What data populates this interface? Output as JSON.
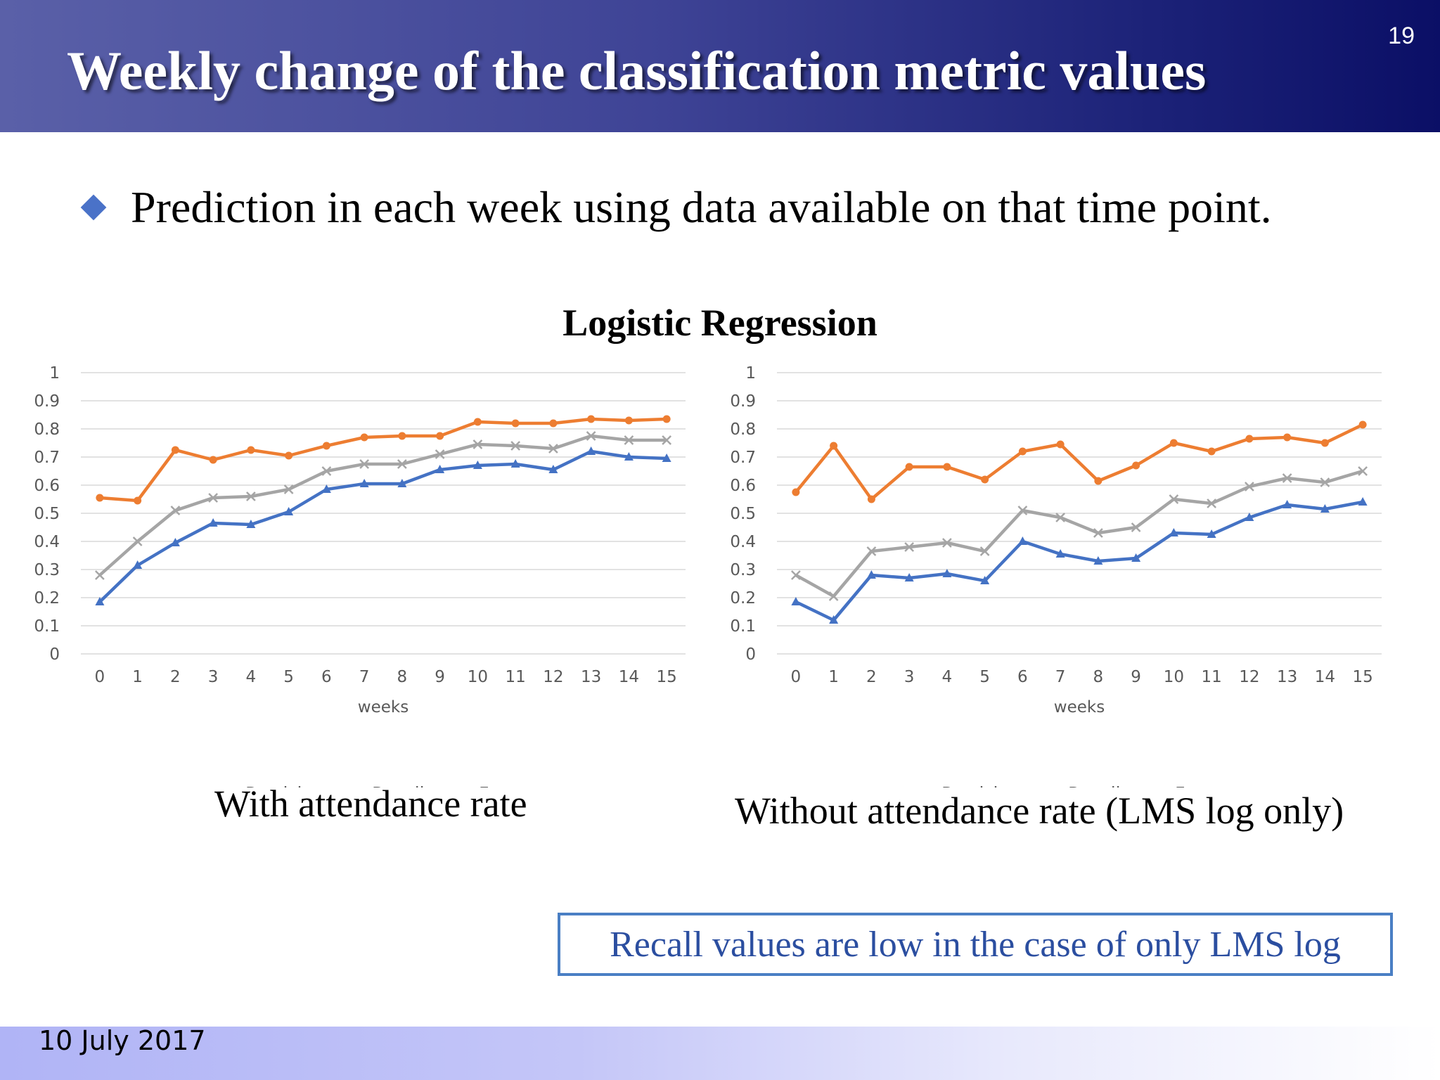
{
  "slide": {
    "title": "Weekly change of the classification metric values",
    "number": "19",
    "bullet": "Prediction in each week using data available on that time point.",
    "section_title": "Logistic Regression",
    "caption_left": "With attendance rate",
    "caption_right": "Without attendance rate (LMS log only)",
    "note": "Recall values are low in the case of only LMS log",
    "date": "10 July 2017"
  },
  "colors": {
    "precision": "#ED7D31",
    "recall": "#4472C4",
    "fmeasure": "#A5A5A5"
  },
  "chart_data": [
    {
      "type": "line",
      "xlabel": "weeks",
      "ylabel": "",
      "ylim": [
        0,
        1
      ],
      "yticks": [
        "0",
        "0.1",
        "0.2",
        "0.3",
        "0.4",
        "0.5",
        "0.6",
        "0.7",
        "0.8",
        "0.9",
        "1"
      ],
      "categories": [
        "0",
        "1",
        "2",
        "3",
        "4",
        "5",
        "6",
        "7",
        "8",
        "9",
        "10",
        "11",
        "12",
        "13",
        "14",
        "15"
      ],
      "grid": true,
      "legend_position": "bottom",
      "series": [
        {
          "name": "Precision",
          "marker": "circle",
          "values": [
            0.555,
            0.545,
            0.725,
            0.69,
            0.725,
            0.705,
            0.74,
            0.77,
            0.775,
            0.775,
            0.825,
            0.82,
            0.82,
            0.835,
            0.83,
            0.835
          ]
        },
        {
          "name": "Recall",
          "marker": "triangle",
          "values": [
            0.185,
            0.315,
            0.395,
            0.465,
            0.46,
            0.505,
            0.585,
            0.605,
            0.605,
            0.655,
            0.67,
            0.675,
            0.655,
            0.72,
            0.7,
            0.695
          ]
        },
        {
          "name": "Fmeasure",
          "marker": "x",
          "values": [
            0.28,
            0.4,
            0.51,
            0.555,
            0.56,
            0.585,
            0.65,
            0.675,
            0.675,
            0.71,
            0.745,
            0.74,
            0.73,
            0.775,
            0.76,
            0.76
          ]
        }
      ]
    },
    {
      "type": "line",
      "xlabel": "weeks",
      "ylabel": "",
      "ylim": [
        0,
        1
      ],
      "yticks": [
        "0",
        "0.1",
        "0.2",
        "0.3",
        "0.4",
        "0.5",
        "0.6",
        "0.7",
        "0.8",
        "0.9",
        "1"
      ],
      "categories": [
        "0",
        "1",
        "2",
        "3",
        "4",
        "5",
        "6",
        "7",
        "8",
        "9",
        "10",
        "11",
        "12",
        "13",
        "14",
        "15"
      ],
      "grid": true,
      "legend_position": "bottom",
      "series": [
        {
          "name": "Precision",
          "marker": "circle",
          "values": [
            0.575,
            0.74,
            0.55,
            0.665,
            0.665,
            0.62,
            0.72,
            0.745,
            0.615,
            0.67,
            0.75,
            0.72,
            0.765,
            0.77,
            0.75,
            0.815
          ]
        },
        {
          "name": "Recall",
          "marker": "triangle",
          "values": [
            0.185,
            0.12,
            0.28,
            0.27,
            0.285,
            0.26,
            0.4,
            0.355,
            0.33,
            0.34,
            0.43,
            0.425,
            0.485,
            0.53,
            0.515,
            0.54
          ]
        },
        {
          "name": "Fmeasure",
          "marker": "x",
          "values": [
            0.28,
            0.205,
            0.365,
            0.38,
            0.395,
            0.365,
            0.51,
            0.485,
            0.43,
            0.45,
            0.55,
            0.535,
            0.595,
            0.625,
            0.61,
            0.65
          ]
        }
      ]
    }
  ]
}
